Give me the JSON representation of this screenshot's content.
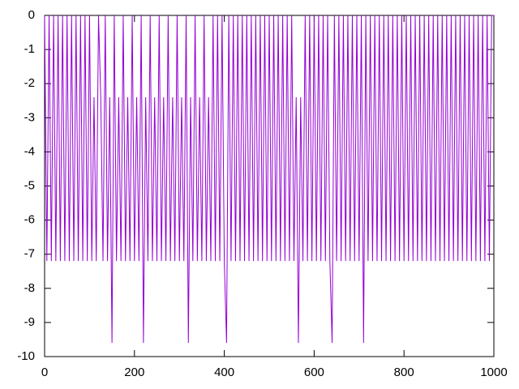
{
  "chart_data": {
    "type": "line",
    "xlim": [
      0,
      1000
    ],
    "xticks": [
      0,
      200,
      400,
      600,
      800,
      1000
    ],
    "ylim": [
      -10,
      0
    ],
    "yticks": [
      -10,
      -9,
      -8,
      -7,
      -6,
      -5,
      -4,
      -3,
      -2,
      -1,
      0
    ],
    "x": [
      0,
      5,
      10,
      15,
      20,
      25,
      30,
      35,
      40,
      45,
      50,
      55,
      60,
      65,
      70,
      75,
      80,
      85,
      90,
      95,
      100,
      105,
      110,
      115,
      120,
      125,
      130,
      135,
      140,
      145,
      150,
      155,
      160,
      165,
      170,
      175,
      180,
      185,
      190,
      195,
      200,
      205,
      210,
      215,
      220,
      225,
      230,
      235,
      240,
      245,
      250,
      255,
      260,
      265,
      270,
      275,
      280,
      285,
      290,
      295,
      300,
      305,
      310,
      315,
      320,
      325,
      330,
      335,
      340,
      345,
      350,
      355,
      360,
      365,
      370,
      375,
      380,
      385,
      390,
      395,
      400,
      405,
      410,
      415,
      420,
      425,
      430,
      435,
      440,
      445,
      450,
      455,
      460,
      465,
      470,
      475,
      480,
      485,
      490,
      495,
      500,
      505,
      510,
      515,
      520,
      525,
      530,
      535,
      540,
      545,
      550,
      555,
      560,
      565,
      570,
      575,
      580,
      585,
      590,
      595,
      600,
      605,
      610,
      615,
      620,
      625,
      630,
      635,
      640,
      645,
      650,
      655,
      660,
      665,
      670,
      675,
      680,
      685,
      690,
      695,
      700,
      705,
      710,
      715,
      720,
      725,
      730,
      735,
      740,
      745,
      750,
      755,
      760,
      765,
      770,
      775,
      780,
      785,
      790,
      795,
      800,
      805,
      810,
      815,
      820,
      825,
      830,
      835,
      840,
      845,
      850,
      855,
      860,
      865,
      870,
      875,
      880,
      885,
      890,
      895,
      900,
      905,
      910,
      915,
      920,
      925,
      930,
      935,
      940,
      945,
      950,
      955,
      960,
      965,
      970,
      975,
      980,
      985,
      990,
      995,
      1000
    ],
    "series": [
      {
        "color": "#9400d3",
        "values": [
          0,
          -7.2,
          0,
          -7.2,
          0,
          -7.2,
          0,
          -7.2,
          0,
          -7.2,
          0,
          -7.2,
          0,
          -7.2,
          0,
          -7.2,
          0,
          -7.2,
          0,
          -7.2,
          0,
          -7.2,
          -2.4,
          -7.2,
          0,
          -2.4,
          -7.2,
          0,
          -7.2,
          -2.4,
          -9.6,
          0,
          -7.2,
          -2.4,
          -7.2,
          0,
          -7.2,
          -2.4,
          -7.2,
          0,
          -7.2,
          -2.4,
          -7.2,
          0,
          -9.6,
          -2.4,
          -7.2,
          0,
          -7.2,
          -2.4,
          -7.2,
          0,
          -7.2,
          -2.4,
          -7.2,
          0,
          -7.2,
          -2.4,
          -7.2,
          0,
          -7.2,
          -2.4,
          -7.2,
          0,
          -9.6,
          -2.4,
          -7.2,
          0,
          -7.2,
          -2.4,
          -7.2,
          0,
          -7.2,
          -2.4,
          -7.2,
          0,
          -7.2,
          0,
          -7.2,
          0,
          -7.2,
          -9.6,
          0,
          -7.2,
          0,
          -7.2,
          0,
          -7.2,
          0,
          -7.2,
          0,
          -7.2,
          0,
          -7.2,
          0,
          -7.2,
          0,
          -7.2,
          0,
          -7.2,
          0,
          -7.2,
          0,
          -7.2,
          0,
          -7.2,
          0,
          -7.2,
          0,
          -7.2,
          0,
          -7.2,
          -2.4,
          -9.6,
          -2.4,
          -7.2,
          0,
          -7.2,
          0,
          -7.2,
          0,
          -7.2,
          0,
          -7.2,
          0,
          -7.2,
          0,
          -7.2,
          -9.6,
          0,
          -7.2,
          0,
          -7.2,
          0,
          -7.2,
          0,
          -7.2,
          0,
          -7.2,
          0,
          -7.2,
          0,
          -9.6,
          0,
          -7.2,
          0,
          -7.2,
          0,
          -7.2,
          0,
          -7.2,
          0,
          -7.2,
          0,
          -7.2,
          0,
          -7.2,
          0,
          -7.2,
          0,
          -7.2,
          0,
          -7.2,
          0,
          -7.2,
          0,
          -7.2,
          0,
          -7.2,
          0,
          -7.2,
          0,
          -7.2,
          0,
          -7.2,
          0,
          -7.2,
          0,
          -7.2,
          0,
          -7.2,
          0,
          -7.2,
          0,
          -7.2,
          0,
          -7.2,
          0,
          -7.2,
          0,
          -7.2,
          0,
          -7.2,
          0,
          -7.2,
          0,
          -7.2,
          0,
          -7.2,
          0,
          0
        ]
      }
    ]
  }
}
